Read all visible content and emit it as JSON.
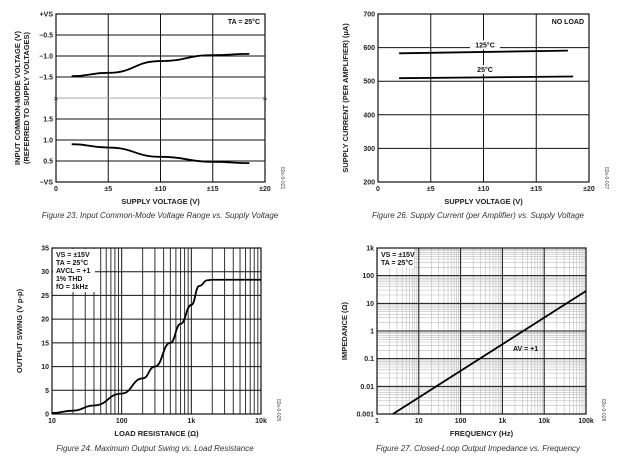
{
  "chart_data": [
    {
      "type": "line",
      "title": "",
      "caption": "Figure 23. Input Common-Mode Voltage Range vs. Supply Voltage",
      "xlabel": "SUPPLY VOLTAGE (V)",
      "ylabel": [
        "INPUT COMMON-MODE VOLTAGE (V)",
        "(REFERRED TO SUPPLY VOLTAGES)"
      ],
      "xlim": [
        0,
        20
      ],
      "xticks": [
        "0",
        "±5",
        "±10",
        "±15",
        "±20"
      ],
      "yticks": [
        "+VS",
        "−0.5",
        "−1.0",
        "−1.5",
        "",
        "1.5",
        "1.0",
        "0.5",
        "−VS"
      ],
      "annotation": "TA = 25°C",
      "side_code": "02x-0-021",
      "series": [
        {
          "name": "upper",
          "x": [
            1.5,
            5,
            10,
            15,
            18.5
          ],
          "y": [
            -1.48,
            -1.4,
            -1.12,
            -0.98,
            -0.95
          ]
        },
        {
          "name": "lower",
          "x": [
            1.5,
            5,
            10,
            15,
            18.5
          ],
          "y": [
            0.9,
            0.82,
            0.6,
            0.48,
            0.45
          ]
        }
      ]
    },
    {
      "type": "line",
      "caption": "Figure 26. Supply Current (per Amplifier) vs. Supply Voltage",
      "xlabel": "SUPPLY VOLTAGE (V)",
      "ylabel": "SUPPLY CURRENT (PER AMPLIFIER) (µA)",
      "xlim": [
        0,
        20
      ],
      "ylim": [
        200,
        700
      ],
      "xticks": [
        "0",
        "±5",
        "±10",
        "±15",
        "±20"
      ],
      "yticks": [
        "700",
        "600",
        "500",
        "400",
        "300",
        "200"
      ],
      "annotation": "NO LOAD",
      "side_code": "02x-0-027",
      "series": [
        {
          "name": "125°C",
          "x": [
            2,
            18
          ],
          "y": [
            583,
            591
          ]
        },
        {
          "name": "25°C",
          "x": [
            2,
            18.5
          ],
          "y": [
            509,
            514
          ]
        }
      ]
    },
    {
      "type": "line",
      "caption": "Figure 24. Maximum Output Swing vs. Load Resistance",
      "xlabel": "LOAD RESISTANCE (Ω)",
      "ylabel": "OUTPUT SWING (V p-p)",
      "xscale": "log",
      "xlim": [
        10,
        10000
      ],
      "ylim": [
        0,
        35
      ],
      "xticks": [
        "10",
        "100",
        "1k",
        "10k"
      ],
      "yticks": [
        "35",
        "30",
        "25",
        "20",
        "15",
        "10",
        "5",
        "0"
      ],
      "annotation": [
        "VS = ±15V",
        "TA = 25°C",
        "AVCL = +1",
        "1% THD",
        "fO = 1kHz"
      ],
      "side_code": "02x-0-025",
      "series": [
        {
          "name": "swing",
          "x": [
            10,
            20,
            40,
            100,
            200,
            300,
            500,
            700,
            1000,
            1300,
            1700,
            2000,
            10000
          ],
          "y": [
            0.2,
            0.7,
            1.8,
            4.3,
            7.5,
            10,
            15,
            19,
            23,
            27,
            28.2,
            28.3,
            28.3
          ]
        }
      ]
    },
    {
      "type": "line",
      "caption": "Figure 27. Closed-Loop Output Impedance vs. Frequency",
      "xlabel": "FREQUENCY (Hz)",
      "ylabel": "IMPEDANCE (Ω)",
      "xscale": "log",
      "yscale": "log",
      "xlim": [
        1,
        100000
      ],
      "ylim": [
        0.001,
        1000
      ],
      "xticks": [
        "1",
        "10",
        "100",
        "1k",
        "10k",
        "100k"
      ],
      "yticks": [
        "1k",
        "100",
        "10",
        "1",
        "0.1",
        "0.01",
        "0.001"
      ],
      "annotation": [
        "VS = ±15V",
        "TA = 25°C"
      ],
      "curve_label": "AV = +1",
      "side_code": "02x-0-028",
      "series": [
        {
          "name": "AV = +1",
          "x": [
            2.4,
            100000
          ],
          "y": [
            0.001,
            28
          ]
        }
      ]
    }
  ]
}
